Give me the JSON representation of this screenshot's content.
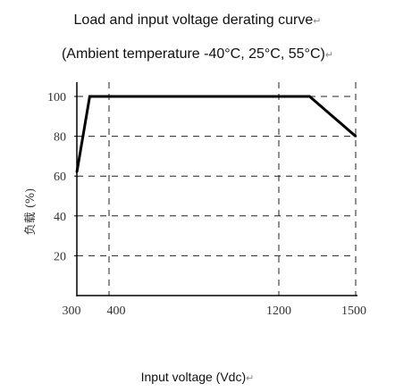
{
  "chart_data": {
    "type": "line",
    "title": "Load and input voltage derating curve",
    "subtitle": "(Ambient temperature -40°C, 25°C, 55°C)",
    "xlabel": "Input voltage (Vdc)",
    "ylabel": "负载 (%)",
    "x_ticks": [
      300,
      400,
      1200,
      1500
    ],
    "y_ticks": [
      20,
      40,
      60,
      80,
      100
    ],
    "xlim": [
      300,
      1500
    ],
    "ylim": [
      0,
      104
    ],
    "grid": "dashed",
    "series": [
      {
        "x": [
          300,
          340,
          1320,
          1500
        ],
        "y": [
          62,
          100,
          100,
          80
        ]
      }
    ],
    "line_color": "#000000"
  }
}
